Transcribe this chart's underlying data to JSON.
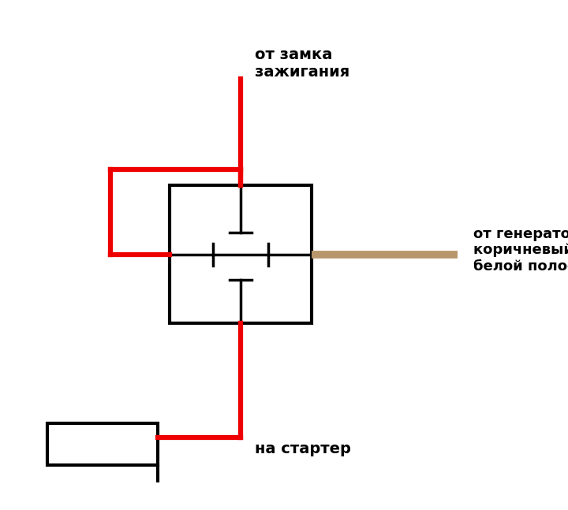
{
  "bg_color": "#ffffff",
  "red_color": "#ee0000",
  "brown_color": "#b8956a",
  "black_color": "#000000",
  "text_color": "#000000",
  "label_top": "от замка\nзажигания",
  "label_right": "от генератора\nкоричневый с\nбелой полосой",
  "label_bottom": "на стартер",
  "figsize": [
    7.2,
    6.47
  ],
  "dpi": 100
}
